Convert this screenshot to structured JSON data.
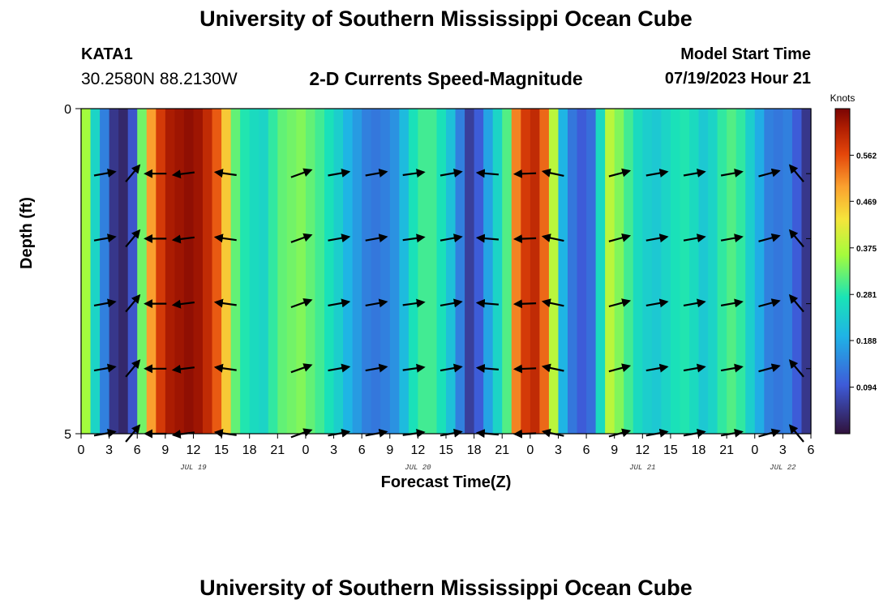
{
  "header": {
    "title": "University of Southern Mississippi Ocean Cube",
    "station_id": "KATA1",
    "station_coords": "30.2580N  88.2130W",
    "subtitle": "2-D Currents Speed-Magnitude",
    "model_start_label": "Model Start Time",
    "model_start_value": "07/19/2023 Hour 21"
  },
  "footer": {
    "title": "University of Southern Mississippi Ocean Cube"
  },
  "chart_data": {
    "type": "heatmap",
    "title": "2-D Currents Speed-Magnitude",
    "xlabel": "Forecast Time(Z)",
    "ylabel": "Depth (ft)",
    "colorbar_label": "Knots",
    "colorbar_ticks": [
      "0.094",
      "0.188",
      "0.281",
      "0.375",
      "0.469",
      "0.562"
    ],
    "colorbar_range": [
      0.0,
      0.656
    ],
    "x_range_hours": [
      0,
      78
    ],
    "x_tick_labels": [
      "0",
      "3",
      "6",
      "9",
      "12",
      "15",
      "18",
      "21",
      "0",
      "3",
      "6",
      "9",
      "12",
      "15",
      "18",
      "21",
      "0",
      "3",
      "6",
      "9",
      "12",
      "15",
      "18",
      "21",
      "0",
      "3",
      "6"
    ],
    "date_labels": [
      {
        "hour": 12,
        "text": "JUL 19"
      },
      {
        "hour": 36,
        "text": "JUL 20"
      },
      {
        "hour": 60,
        "text": "JUL 21"
      },
      {
        "hour": 75,
        "text": "JUL 22"
      }
    ],
    "y_range_ft": [
      0,
      5
    ],
    "y_tick_labels": [
      "0",
      "5"
    ],
    "speed_by_hour": [
      {
        "hour": 0,
        "speed": 0.36
      },
      {
        "hour": 1,
        "speed": 0.25
      },
      {
        "hour": 2,
        "speed": 0.14
      },
      {
        "hour": 3,
        "speed": 0.05
      },
      {
        "hour": 4,
        "speed": 0.03
      },
      {
        "hour": 5,
        "speed": 0.09
      },
      {
        "hour": 6,
        "speed": 0.33
      },
      {
        "hour": 7,
        "speed": 0.5
      },
      {
        "hour": 8,
        "speed": 0.58
      },
      {
        "hour": 9,
        "speed": 0.62
      },
      {
        "hour": 10,
        "speed": 0.63
      },
      {
        "hour": 11,
        "speed": 0.64
      },
      {
        "hour": 12,
        "speed": 0.63
      },
      {
        "hour": 13,
        "speed": 0.6
      },
      {
        "hour": 14,
        "speed": 0.55
      },
      {
        "hour": 15,
        "speed": 0.46
      },
      {
        "hour": 16,
        "speed": 0.32
      },
      {
        "hour": 17,
        "speed": 0.28
      },
      {
        "hour": 18,
        "speed": 0.26
      },
      {
        "hour": 19,
        "speed": 0.25
      },
      {
        "hour": 20,
        "speed": 0.29
      },
      {
        "hour": 21,
        "speed": 0.32
      },
      {
        "hour": 22,
        "speed": 0.33
      },
      {
        "hour": 23,
        "speed": 0.34
      },
      {
        "hour": 24,
        "speed": 0.32
      },
      {
        "hour": 25,
        "speed": 0.3
      },
      {
        "hour": 26,
        "speed": 0.27
      },
      {
        "hour": 27,
        "speed": 0.24
      },
      {
        "hour": 28,
        "speed": 0.2
      },
      {
        "hour": 29,
        "speed": 0.17
      },
      {
        "hour": 30,
        "speed": 0.14
      },
      {
        "hour": 31,
        "speed": 0.13
      },
      {
        "hour": 32,
        "speed": 0.14
      },
      {
        "hour": 33,
        "speed": 0.16
      },
      {
        "hour": 34,
        "speed": 0.21
      },
      {
        "hour": 35,
        "speed": 0.27
      },
      {
        "hour": 36,
        "speed": 0.3
      },
      {
        "hour": 37,
        "speed": 0.3
      },
      {
        "hour": 38,
        "speed": 0.27
      },
      {
        "hour": 39,
        "speed": 0.22
      },
      {
        "hour": 40,
        "speed": 0.14
      },
      {
        "hour": 41,
        "speed": 0.06
      },
      {
        "hour": 42,
        "speed": 0.1
      },
      {
        "hour": 43,
        "speed": 0.18
      },
      {
        "hour": 44,
        "speed": 0.25
      },
      {
        "hour": 45,
        "speed": 0.31
      },
      {
        "hour": 46,
        "speed": 0.52
      },
      {
        "hour": 47,
        "speed": 0.58
      },
      {
        "hour": 48,
        "speed": 0.6
      },
      {
        "hour": 49,
        "speed": 0.54
      },
      {
        "hour": 50,
        "speed": 0.38
      },
      {
        "hour": 51,
        "speed": 0.2
      },
      {
        "hour": 52,
        "speed": 0.13
      },
      {
        "hour": 53,
        "speed": 0.1
      },
      {
        "hour": 54,
        "speed": 0.12
      },
      {
        "hour": 55,
        "speed": 0.26
      },
      {
        "hour": 56,
        "speed": 0.38
      },
      {
        "hour": 57,
        "speed": 0.34
      },
      {
        "hour": 58,
        "speed": 0.3
      },
      {
        "hour": 59,
        "speed": 0.26
      },
      {
        "hour": 60,
        "speed": 0.24
      },
      {
        "hour": 61,
        "speed": 0.23
      },
      {
        "hour": 62,
        "speed": 0.25
      },
      {
        "hour": 63,
        "speed": 0.27
      },
      {
        "hour": 64,
        "speed": 0.28
      },
      {
        "hour": 65,
        "speed": 0.26
      },
      {
        "hour": 66,
        "speed": 0.23
      },
      {
        "hour": 67,
        "speed": 0.25
      },
      {
        "hour": 68,
        "speed": 0.29
      },
      {
        "hour": 69,
        "speed": 0.31
      },
      {
        "hour": 70,
        "speed": 0.29
      },
      {
        "hour": 71,
        "speed": 0.24
      },
      {
        "hour": 72,
        "speed": 0.19
      },
      {
        "hour": 73,
        "speed": 0.14
      },
      {
        "hour": 74,
        "speed": 0.13
      },
      {
        "hour": 75,
        "speed": 0.14
      },
      {
        "hour": 76,
        "speed": 0.1
      },
      {
        "hour": 77,
        "speed": 0.05
      }
    ],
    "vector_depths_ft": [
      1,
      2,
      3,
      4,
      5
    ],
    "vectors": [
      {
        "hour": 2.5,
        "dir_deg": 10
      },
      {
        "hour": 5.5,
        "dir_deg": 50
      },
      {
        "hour": 8,
        "dir_deg": 180
      },
      {
        "hour": 11,
        "dir_deg": 187
      },
      {
        "hour": 15.5,
        "dir_deg": 172
      },
      {
        "hour": 23.5,
        "dir_deg": 20
      },
      {
        "hour": 27.5,
        "dir_deg": 10
      },
      {
        "hour": 31.5,
        "dir_deg": 10
      },
      {
        "hour": 35.5,
        "dir_deg": 8
      },
      {
        "hour": 39.5,
        "dir_deg": 10
      },
      {
        "hour": 43.5,
        "dir_deg": 175
      },
      {
        "hour": 47.5,
        "dir_deg": 182
      },
      {
        "hour": 50.5,
        "dir_deg": 168
      },
      {
        "hour": 57.5,
        "dir_deg": 15
      },
      {
        "hour": 61.5,
        "dir_deg": 10
      },
      {
        "hour": 65.5,
        "dir_deg": 10
      },
      {
        "hour": 69.5,
        "dir_deg": 10
      },
      {
        "hour": 73.5,
        "dir_deg": 15
      },
      {
        "hour": 76.5,
        "dir_deg": 130
      }
    ]
  }
}
